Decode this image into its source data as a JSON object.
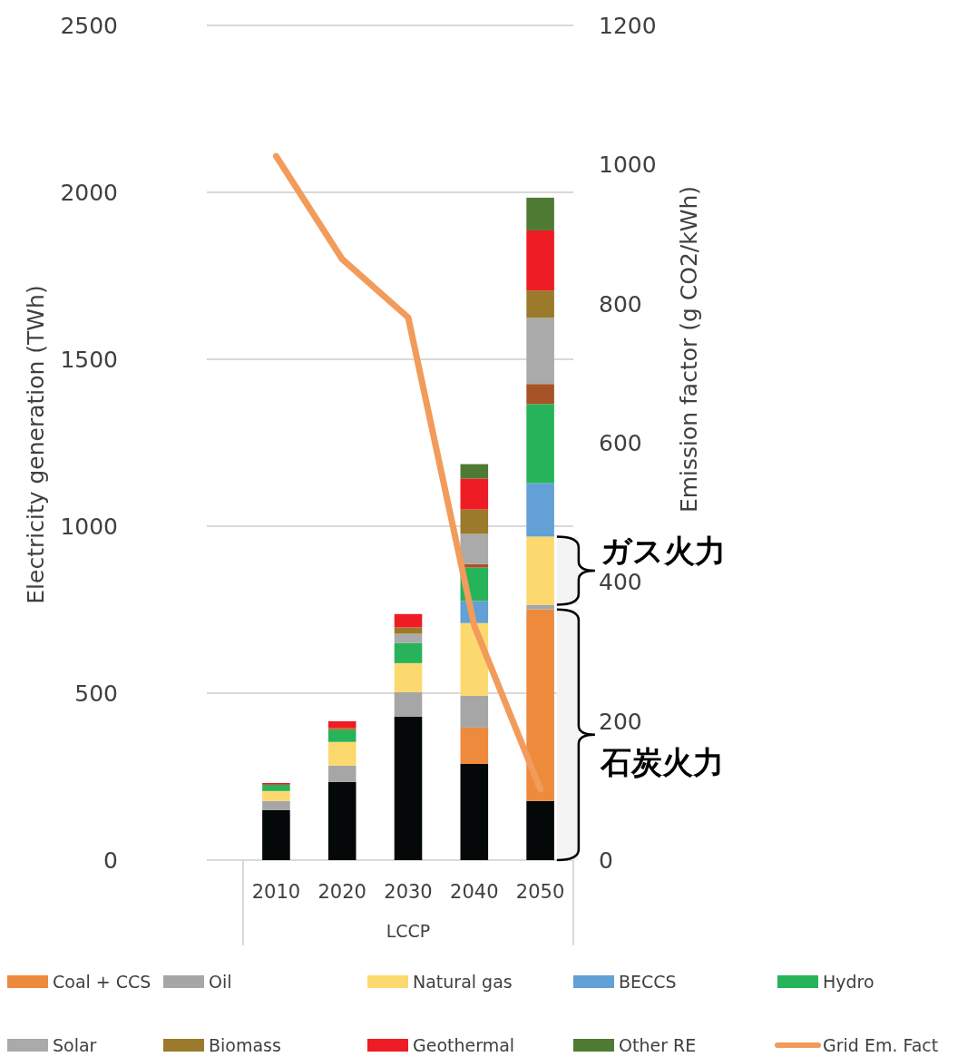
{
  "chart_data": {
    "type": "bar",
    "stacked": true,
    "categories": [
      "2010",
      "2020",
      "2030",
      "2040",
      "2050"
    ],
    "xlabel": "LCCP",
    "ylabel": "Electricity generation (TWh)",
    "y2label": "Emission factor (g CO2/kWh)",
    "ylim": [
      0,
      2500
    ],
    "yticks": [
      0,
      500,
      1000,
      1500,
      2000,
      2500
    ],
    "y2lim": [
      0,
      1200
    ],
    "y2ticks": [
      0,
      200,
      400,
      600,
      800,
      1000,
      1200
    ],
    "grid": "y",
    "legend": "bottom",
    "series": [
      {
        "color": "#050808",
        "values": [
          150,
          234,
          430,
          288,
          177
        ]
      },
      {
        "name": "Coal + CCS",
        "color": "#ee8a3c",
        "values": [
          0,
          0,
          0,
          109,
          574
        ]
      },
      {
        "name": "Oil",
        "color": "#a6a6a6",
        "values": [
          27,
          49,
          73,
          95,
          14
        ]
      },
      {
        "name": "Natural gas",
        "color": "#fcd96e",
        "values": [
          30,
          71,
          87,
          218,
          204
        ]
      },
      {
        "name": "BECCS",
        "color": "#62a0d6",
        "values": [
          0,
          0,
          0,
          66,
          160
        ]
      },
      {
        "name": "Hydro",
        "color": "#27b35a",
        "values": [
          19,
          35,
          60,
          100,
          237
        ]
      },
      {
        "color": "#a65426",
        "values": [
          0,
          0,
          0,
          11,
          60
        ]
      },
      {
        "name": "Solar",
        "color": "#aaaaaa",
        "values": [
          0,
          0,
          28,
          90,
          198
        ]
      },
      {
        "name": "Biomass",
        "color": "#9b7a2b",
        "values": [
          0,
          6,
          19,
          73,
          82
        ]
      },
      {
        "name": "Geothermal",
        "color": "#ee1c24",
        "values": [
          5,
          21,
          40,
          93,
          180
        ]
      },
      {
        "name": "Other RE",
        "color": "#4f7a33",
        "values": [
          0,
          0,
          0,
          43,
          98
        ]
      },
      {
        "name": "Grid Em. Fact",
        "type": "line",
        "axis": "y2",
        "color": "#f29b5b",
        "values": [
          1012,
          864,
          780,
          337,
          102
        ]
      }
    ],
    "bands": [
      {
        "axis": "y",
        "from": 765,
        "to": 969,
        "label": "ガス火力"
      },
      {
        "axis": "y",
        "from": 0,
        "to": 751,
        "label": "石炭火力"
      }
    ]
  }
}
